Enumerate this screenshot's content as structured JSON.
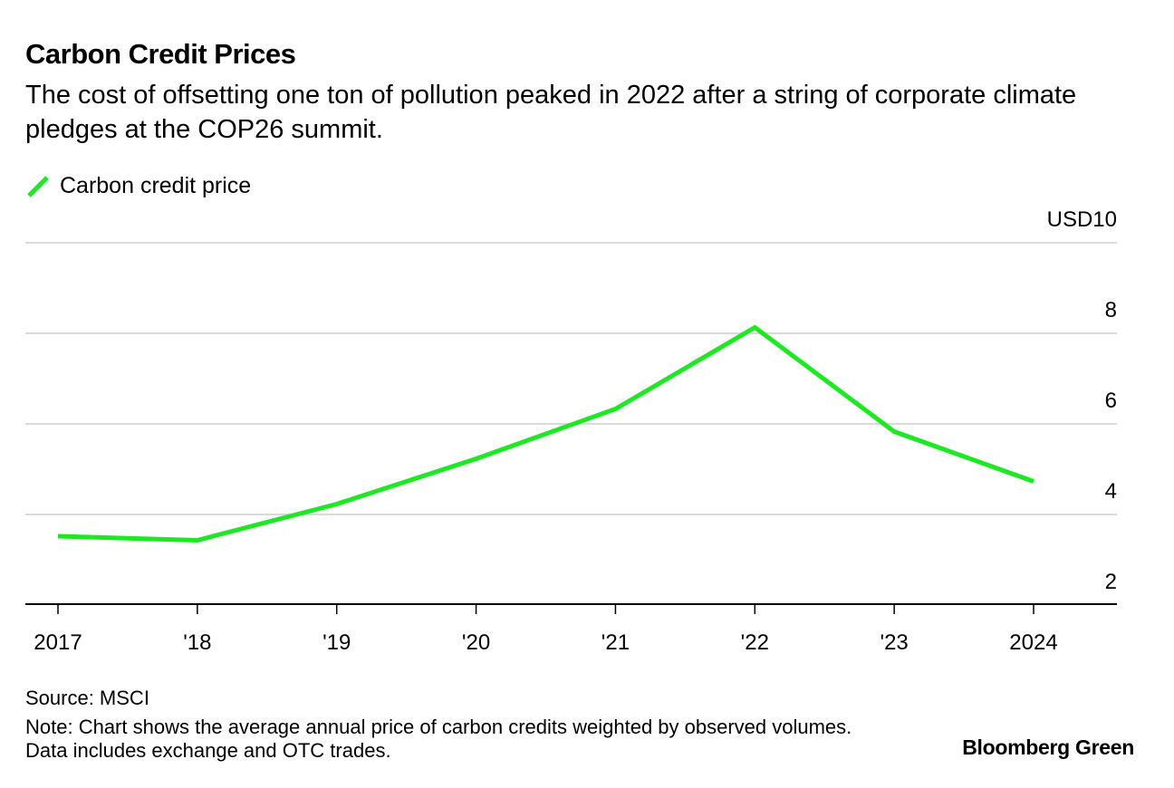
{
  "header": {
    "title": "Carbon Credit Prices",
    "subtitle": "The cost of offsetting one ton of pollution peaked in 2022 after a string of corporate climate pledges at the COP26 summit."
  },
  "footer": {
    "source": "Source: MSCI",
    "note": "Note: Chart shows the average annual price of carbon credits weighted by observed volumes. Data includes exchange and OTC trades.",
    "brand": "Bloomberg Green"
  },
  "colors": {
    "series": "#1ee824",
    "grid": "#d9d9d9",
    "axis": "#000000"
  },
  "chart_data": {
    "type": "line",
    "title": "Carbon Credit Prices",
    "x": [
      2017,
      2018,
      2019,
      2020,
      2021,
      2022,
      2023,
      2024
    ],
    "x_tick_labels": [
      "2017",
      "'18",
      "'19",
      "'20",
      "'21",
      "'22",
      "'23",
      "2024"
    ],
    "series": [
      {
        "name": "Carbon credit price",
        "values": [
          3.52,
          3.43,
          4.23,
          5.23,
          6.33,
          8.13,
          5.83,
          4.73
        ]
      }
    ],
    "ylim": [
      2,
      10
    ],
    "y_ticks": [
      2,
      4,
      6,
      8,
      10
    ],
    "y_tick_labels": [
      "2",
      "4",
      "6",
      "8",
      "USD10"
    ],
    "y_axis_side": "right",
    "grid": true,
    "legend": "top-left"
  }
}
